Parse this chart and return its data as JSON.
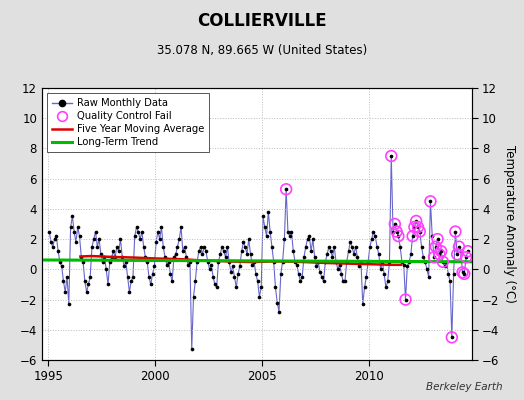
{
  "title": "COLLIERVILLE",
  "subtitle": "35.078 N, 89.665 W (United States)",
  "ylabel": "Temperature Anomaly (°C)",
  "credit": "Berkeley Earth",
  "ylim": [
    -6,
    12
  ],
  "yticks": [
    -6,
    -4,
    -2,
    0,
    2,
    4,
    6,
    8,
    10,
    12
  ],
  "xlim_start": 1994.7,
  "xlim_end": 2014.8,
  "xticks": [
    1995,
    2000,
    2005,
    2010
  ],
  "bg_color": "#e0e0e0",
  "plot_bg_color": "#ffffff",
  "raw_line_color": "#6666cc",
  "raw_marker_color": "#000000",
  "qc_fail_color": "#ff40ff",
  "moving_avg_color": "#dd0000",
  "trend_color": "#00bb00",
  "raw_data": [
    [
      1995.042,
      2.5
    ],
    [
      1995.125,
      1.8
    ],
    [
      1995.208,
      1.5
    ],
    [
      1995.292,
      2.0
    ],
    [
      1995.375,
      2.2
    ],
    [
      1995.458,
      1.2
    ],
    [
      1995.542,
      0.5
    ],
    [
      1995.625,
      0.2
    ],
    [
      1995.708,
      -0.8
    ],
    [
      1995.792,
      -1.5
    ],
    [
      1995.875,
      -0.5
    ],
    [
      1995.958,
      -2.3
    ],
    [
      1996.042,
      2.8
    ],
    [
      1996.125,
      3.5
    ],
    [
      1996.208,
      2.5
    ],
    [
      1996.292,
      1.8
    ],
    [
      1996.375,
      2.8
    ],
    [
      1996.458,
      2.2
    ],
    [
      1996.542,
      0.8
    ],
    [
      1996.625,
      0.5
    ],
    [
      1996.708,
      -0.8
    ],
    [
      1996.792,
      -1.5
    ],
    [
      1996.875,
      -1.0
    ],
    [
      1996.958,
      -0.5
    ],
    [
      1997.042,
      1.5
    ],
    [
      1997.125,
      2.0
    ],
    [
      1997.208,
      2.5
    ],
    [
      1997.292,
      1.5
    ],
    [
      1997.375,
      2.0
    ],
    [
      1997.458,
      1.0
    ],
    [
      1997.542,
      0.5
    ],
    [
      1997.625,
      0.8
    ],
    [
      1997.708,
      0.0
    ],
    [
      1997.792,
      -1.0
    ],
    [
      1997.875,
      0.5
    ],
    [
      1997.958,
      0.8
    ],
    [
      1998.042,
      1.2
    ],
    [
      1998.125,
      0.8
    ],
    [
      1998.208,
      1.5
    ],
    [
      1998.292,
      1.2
    ],
    [
      1998.375,
      2.0
    ],
    [
      1998.458,
      0.8
    ],
    [
      1998.542,
      0.2
    ],
    [
      1998.625,
      0.5
    ],
    [
      1998.708,
      -0.5
    ],
    [
      1998.792,
      -1.5
    ],
    [
      1998.875,
      -0.8
    ],
    [
      1998.958,
      -0.5
    ],
    [
      1999.042,
      2.2
    ],
    [
      1999.125,
      2.8
    ],
    [
      1999.208,
      2.5
    ],
    [
      1999.292,
      2.0
    ],
    [
      1999.375,
      2.5
    ],
    [
      1999.458,
      1.5
    ],
    [
      1999.542,
      0.8
    ],
    [
      1999.625,
      0.5
    ],
    [
      1999.708,
      -0.5
    ],
    [
      1999.792,
      -1.0
    ],
    [
      1999.875,
      -0.3
    ],
    [
      1999.958,
      0.2
    ],
    [
      2000.042,
      1.8
    ],
    [
      2000.125,
      2.5
    ],
    [
      2000.208,
      2.0
    ],
    [
      2000.292,
      2.8
    ],
    [
      2000.375,
      1.5
    ],
    [
      2000.458,
      0.8
    ],
    [
      2000.542,
      0.3
    ],
    [
      2000.625,
      0.5
    ],
    [
      2000.708,
      -0.3
    ],
    [
      2000.792,
      -0.8
    ],
    [
      2000.875,
      0.8
    ],
    [
      2000.958,
      1.0
    ],
    [
      2001.042,
      1.5
    ],
    [
      2001.125,
      2.0
    ],
    [
      2001.208,
      2.8
    ],
    [
      2001.292,
      1.2
    ],
    [
      2001.375,
      1.5
    ],
    [
      2001.458,
      0.8
    ],
    [
      2001.542,
      0.3
    ],
    [
      2001.625,
      0.5
    ],
    [
      2001.708,
      -5.3
    ],
    [
      2001.792,
      -1.8
    ],
    [
      2001.875,
      -0.8
    ],
    [
      2001.958,
      0.5
    ],
    [
      2002.042,
      1.2
    ],
    [
      2002.125,
      1.5
    ],
    [
      2002.208,
      1.0
    ],
    [
      2002.292,
      1.5
    ],
    [
      2002.375,
      1.2
    ],
    [
      2002.458,
      0.5
    ],
    [
      2002.542,
      0.0
    ],
    [
      2002.625,
      0.3
    ],
    [
      2002.708,
      -0.5
    ],
    [
      2002.792,
      -1.0
    ],
    [
      2002.875,
      -1.2
    ],
    [
      2002.958,
      0.5
    ],
    [
      2003.042,
      1.0
    ],
    [
      2003.125,
      1.5
    ],
    [
      2003.208,
      1.2
    ],
    [
      2003.292,
      0.8
    ],
    [
      2003.375,
      1.5
    ],
    [
      2003.458,
      0.5
    ],
    [
      2003.542,
      -0.2
    ],
    [
      2003.625,
      0.2
    ],
    [
      2003.708,
      -0.5
    ],
    [
      2003.792,
      -1.2
    ],
    [
      2003.875,
      -0.3
    ],
    [
      2003.958,
      0.2
    ],
    [
      2004.042,
      1.2
    ],
    [
      2004.125,
      1.8
    ],
    [
      2004.208,
      1.5
    ],
    [
      2004.292,
      1.0
    ],
    [
      2004.375,
      2.0
    ],
    [
      2004.458,
      1.0
    ],
    [
      2004.542,
      0.3
    ],
    [
      2004.625,
      0.5
    ],
    [
      2004.708,
      -0.3
    ],
    [
      2004.792,
      -0.8
    ],
    [
      2004.875,
      -1.8
    ],
    [
      2004.958,
      -1.2
    ],
    [
      2005.042,
      3.5
    ],
    [
      2005.125,
      2.8
    ],
    [
      2005.208,
      2.2
    ],
    [
      2005.292,
      3.8
    ],
    [
      2005.375,
      2.5
    ],
    [
      2005.458,
      1.5
    ],
    [
      2005.542,
      0.5
    ],
    [
      2005.625,
      -1.2
    ],
    [
      2005.708,
      -2.2
    ],
    [
      2005.792,
      -2.8
    ],
    [
      2005.875,
      -0.3
    ],
    [
      2005.958,
      0.5
    ],
    [
      2006.042,
      2.0
    ],
    [
      2006.125,
      5.3
    ],
    [
      2006.208,
      2.5
    ],
    [
      2006.292,
      2.2
    ],
    [
      2006.375,
      2.5
    ],
    [
      2006.458,
      1.2
    ],
    [
      2006.542,
      0.5
    ],
    [
      2006.625,
      0.3
    ],
    [
      2006.708,
      -0.3
    ],
    [
      2006.792,
      -0.8
    ],
    [
      2006.875,
      -0.5
    ],
    [
      2006.958,
      0.8
    ],
    [
      2007.042,
      1.5
    ],
    [
      2007.125,
      2.0
    ],
    [
      2007.208,
      2.2
    ],
    [
      2007.292,
      1.2
    ],
    [
      2007.375,
      2.0
    ],
    [
      2007.458,
      0.8
    ],
    [
      2007.542,
      0.2
    ],
    [
      2007.625,
      0.5
    ],
    [
      2007.708,
      -0.2
    ],
    [
      2007.792,
      -0.5
    ],
    [
      2007.875,
      -0.8
    ],
    [
      2007.958,
      0.5
    ],
    [
      2008.042,
      1.0
    ],
    [
      2008.125,
      1.5
    ],
    [
      2008.208,
      1.2
    ],
    [
      2008.292,
      0.8
    ],
    [
      2008.375,
      1.5
    ],
    [
      2008.458,
      0.5
    ],
    [
      2008.542,
      0.0
    ],
    [
      2008.625,
      0.3
    ],
    [
      2008.708,
      -0.3
    ],
    [
      2008.792,
      -0.8
    ],
    [
      2008.875,
      -0.8
    ],
    [
      2008.958,
      0.5
    ],
    [
      2009.042,
      1.2
    ],
    [
      2009.125,
      1.8
    ],
    [
      2009.208,
      1.5
    ],
    [
      2009.292,
      1.0
    ],
    [
      2009.375,
      1.5
    ],
    [
      2009.458,
      0.8
    ],
    [
      2009.542,
      0.2
    ],
    [
      2009.625,
      0.5
    ],
    [
      2009.708,
      -2.3
    ],
    [
      2009.792,
      -1.2
    ],
    [
      2009.875,
      -0.5
    ],
    [
      2009.958,
      0.5
    ],
    [
      2010.042,
      1.5
    ],
    [
      2010.125,
      2.0
    ],
    [
      2010.208,
      2.5
    ],
    [
      2010.292,
      2.2
    ],
    [
      2010.375,
      1.5
    ],
    [
      2010.458,
      1.0
    ],
    [
      2010.542,
      0.0
    ],
    [
      2010.625,
      0.5
    ],
    [
      2010.708,
      -0.3
    ],
    [
      2010.792,
      -1.2
    ],
    [
      2010.875,
      -0.8
    ],
    [
      2010.958,
      0.5
    ],
    [
      2011.042,
      7.5
    ],
    [
      2011.125,
      2.5
    ],
    [
      2011.208,
      3.0
    ],
    [
      2011.292,
      2.5
    ],
    [
      2011.375,
      2.2
    ],
    [
      2011.458,
      1.5
    ],
    [
      2011.542,
      0.5
    ],
    [
      2011.625,
      0.3
    ],
    [
      2011.708,
      -2.0
    ],
    [
      2011.792,
      0.2
    ],
    [
      2011.875,
      0.5
    ],
    [
      2011.958,
      1.0
    ],
    [
      2012.042,
      2.2
    ],
    [
      2012.125,
      2.8
    ],
    [
      2012.208,
      3.2
    ],
    [
      2012.292,
      2.8
    ],
    [
      2012.375,
      2.5
    ],
    [
      2012.458,
      1.5
    ],
    [
      2012.542,
      0.8
    ],
    [
      2012.625,
      0.5
    ],
    [
      2012.708,
      0.0
    ],
    [
      2012.792,
      -0.5
    ],
    [
      2012.875,
      4.5
    ],
    [
      2012.958,
      2.2
    ],
    [
      2013.042,
      0.8
    ],
    [
      2013.125,
      1.5
    ],
    [
      2013.208,
      2.0
    ],
    [
      2013.292,
      1.0
    ],
    [
      2013.375,
      1.2
    ],
    [
      2013.458,
      0.5
    ],
    [
      2013.542,
      0.2
    ],
    [
      2013.625,
      0.5
    ],
    [
      2013.708,
      -0.3
    ],
    [
      2013.792,
      -0.8
    ],
    [
      2013.875,
      -4.5
    ],
    [
      2013.958,
      -0.3
    ],
    [
      2014.042,
      2.5
    ],
    [
      2014.125,
      1.0
    ],
    [
      2014.208,
      1.5
    ],
    [
      2014.292,
      1.2
    ],
    [
      2014.375,
      -0.2
    ],
    [
      2014.458,
      -0.3
    ],
    [
      2014.542,
      0.8
    ],
    [
      2014.625,
      1.2
    ]
  ],
  "qc_fail_points": [
    [
      2006.125,
      5.3
    ],
    [
      2011.042,
      7.5
    ],
    [
      2011.208,
      3.0
    ],
    [
      2011.292,
      2.5
    ],
    [
      2011.375,
      2.2
    ],
    [
      2011.708,
      -2.0
    ],
    [
      2012.042,
      2.2
    ],
    [
      2012.125,
      2.8
    ],
    [
      2012.208,
      3.2
    ],
    [
      2012.292,
      2.8
    ],
    [
      2012.375,
      2.5
    ],
    [
      2012.875,
      4.5
    ],
    [
      2013.042,
      0.8
    ],
    [
      2013.125,
      1.5
    ],
    [
      2013.208,
      2.0
    ],
    [
      2013.292,
      1.0
    ],
    [
      2013.375,
      1.2
    ],
    [
      2013.458,
      0.5
    ],
    [
      2013.875,
      -4.5
    ],
    [
      2014.042,
      2.5
    ],
    [
      2014.125,
      1.0
    ],
    [
      2014.208,
      1.5
    ],
    [
      2014.375,
      -0.2
    ],
    [
      2014.458,
      -0.3
    ],
    [
      2014.542,
      0.8
    ],
    [
      2014.625,
      1.2
    ]
  ],
  "moving_avg_x": [
    1996.5,
    1997.0,
    1997.5,
    1998.0,
    1998.5,
    1999.0,
    1999.5,
    2000.0,
    2000.5,
    2001.0,
    2001.5,
    2002.0,
    2002.5,
    2003.0,
    2003.5,
    2004.0,
    2004.5,
    2005.0,
    2005.5,
    2006.0,
    2006.5,
    2007.0,
    2007.5,
    2008.0,
    2008.5,
    2009.0,
    2009.5,
    2010.0,
    2010.5,
    2011.0,
    2011.5
  ],
  "moving_avg_y": [
    0.85,
    0.88,
    0.85,
    0.82,
    0.8,
    0.78,
    0.75,
    0.72,
    0.7,
    0.68,
    0.65,
    0.6,
    0.58,
    0.55,
    0.52,
    0.5,
    0.48,
    0.5,
    0.52,
    0.52,
    0.5,
    0.48,
    0.45,
    0.42,
    0.4,
    0.38,
    0.36,
    0.34,
    0.32,
    0.3,
    0.3
  ],
  "trend_x": [
    1994.7,
    2014.8
  ],
  "trend_y": [
    0.62,
    0.5
  ]
}
